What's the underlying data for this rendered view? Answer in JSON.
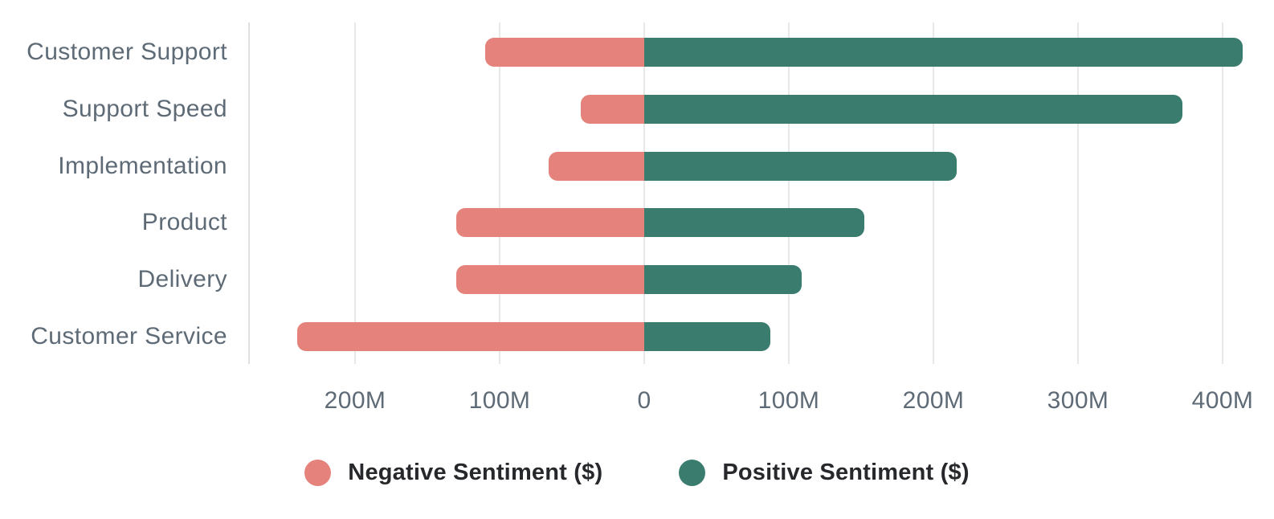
{
  "chart_data": {
    "type": "bar",
    "variant": "diverging-horizontal",
    "title": "",
    "categories": [
      "Customer Support",
      "Support Speed",
      "Implementation",
      "Product",
      "Delivery",
      "Customer Service"
    ],
    "series": [
      {
        "name": "Negative Sentiment ($)",
        "color": "#e4827b",
        "values": [
          -110,
          -44,
          -66,
          -130,
          -130,
          -240
        ],
        "unit": "M$"
      },
      {
        "name": "Positive Sentiment ($)",
        "color": "#3a7c6e",
        "values": [
          414,
          372,
          216,
          152,
          109,
          87
        ],
        "unit": "M$"
      }
    ],
    "x_axis": {
      "unit": "M",
      "ticks": [
        {
          "value": -200,
          "label": "200M"
        },
        {
          "value": -100,
          "label": "100M"
        },
        {
          "value": 0,
          "label": "0"
        },
        {
          "value": 100,
          "label": "100M"
        },
        {
          "value": 200,
          "label": "200M"
        },
        {
          "value": 300,
          "label": "300M"
        },
        {
          "value": 400,
          "label": "400M"
        }
      ],
      "range_musd": [
        -275,
        435
      ],
      "grid": true
    },
    "legend": {
      "position": "bottom",
      "items": [
        "Negative Sentiment ($)",
        "Positive Sentiment ($)"
      ]
    }
  },
  "colors": {
    "negative": "#e4827b",
    "positive": "#3a7c6e",
    "axis_label_text": "#5e6b76",
    "legend_text": "#26282b",
    "gridline": "#e8e8e8",
    "axis_line": "#e0e0e0",
    "background": "#ffffff"
  }
}
